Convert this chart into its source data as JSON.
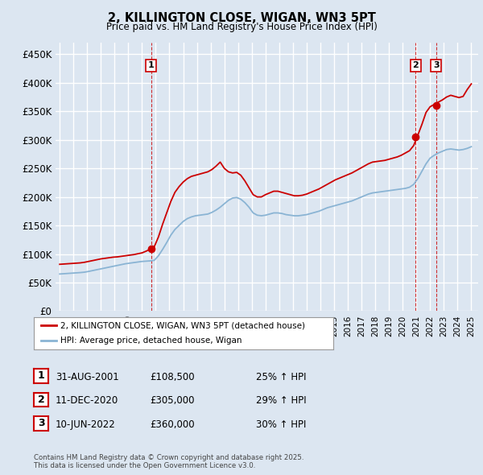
{
  "title": "2, KILLINGTON CLOSE, WIGAN, WN3 5PT",
  "subtitle": "Price paid vs. HM Land Registry's House Price Index (HPI)",
  "ylim": [
    0,
    470000
  ],
  "yticks": [
    0,
    50000,
    100000,
    150000,
    200000,
    250000,
    300000,
    350000,
    400000,
    450000
  ],
  "ytick_labels": [
    "£0",
    "£50K",
    "£100K",
    "£150K",
    "£200K",
    "£250K",
    "£300K",
    "£350K",
    "£400K",
    "£450K"
  ],
  "bg_color": "#dce6f1",
  "plot_bg_color": "#dce6f1",
  "grid_color": "#ffffff",
  "line_color_red": "#cc0000",
  "line_color_blue": "#8ab4d4",
  "dashed_line_color": "#cc0000",
  "transaction_points": [
    {
      "date_num": 2001.66,
      "price": 108500,
      "label": "1"
    },
    {
      "date_num": 2020.94,
      "price": 305000,
      "label": "2"
    },
    {
      "date_num": 2022.44,
      "price": 360000,
      "label": "3"
    }
  ],
  "legend_entry1": "2, KILLINGTON CLOSE, WIGAN, WN3 5PT (detached house)",
  "legend_entry2": "HPI: Average price, detached house, Wigan",
  "table_rows": [
    {
      "num": "1",
      "date": "31-AUG-2001",
      "price": "£108,500",
      "pct": "25% ↑ HPI"
    },
    {
      "num": "2",
      "date": "11-DEC-2020",
      "price": "£305,000",
      "pct": "29% ↑ HPI"
    },
    {
      "num": "3",
      "date": "10-JUN-2022",
      "price": "£360,000",
      "pct": "30% ↑ HPI"
    }
  ],
  "footer": "Contains HM Land Registry data © Crown copyright and database right 2025.\nThis data is licensed under the Open Government Licence v3.0.",
  "hpi_years": [
    1995.0,
    1995.3,
    1995.6,
    1995.9,
    1996.2,
    1996.5,
    1996.8,
    1997.1,
    1997.4,
    1997.7,
    1998.0,
    1998.3,
    1998.6,
    1998.9,
    1999.2,
    1999.5,
    1999.8,
    2000.1,
    2000.4,
    2000.7,
    2001.0,
    2001.3,
    2001.6,
    2001.9,
    2002.2,
    2002.5,
    2002.8,
    2003.1,
    2003.4,
    2003.7,
    2004.0,
    2004.3,
    2004.6,
    2004.9,
    2005.2,
    2005.5,
    2005.8,
    2006.1,
    2006.4,
    2006.7,
    2007.0,
    2007.3,
    2007.6,
    2007.9,
    2008.2,
    2008.5,
    2008.8,
    2009.1,
    2009.4,
    2009.7,
    2010.0,
    2010.3,
    2010.6,
    2010.9,
    2011.2,
    2011.5,
    2011.8,
    2012.1,
    2012.4,
    2012.7,
    2013.0,
    2013.3,
    2013.6,
    2013.9,
    2014.2,
    2014.5,
    2014.8,
    2015.1,
    2015.4,
    2015.7,
    2016.0,
    2016.3,
    2016.6,
    2016.9,
    2017.2,
    2017.5,
    2017.8,
    2018.1,
    2018.4,
    2018.7,
    2019.0,
    2019.3,
    2019.6,
    2019.9,
    2020.2,
    2020.5,
    2020.8,
    2021.1,
    2021.4,
    2021.7,
    2022.0,
    2022.3,
    2022.6,
    2022.9,
    2023.2,
    2023.5,
    2023.8,
    2024.1,
    2024.4,
    2024.7,
    2025.0
  ],
  "hpi_prices": [
    65000,
    65500,
    66000,
    66500,
    67000,
    67500,
    68200,
    69500,
    71000,
    72500,
    74000,
    75500,
    77000,
    78500,
    80000,
    81500,
    83000,
    84000,
    85000,
    86000,
    87000,
    87500,
    88000,
    89000,
    97000,
    108000,
    120000,
    133000,
    143000,
    150000,
    157000,
    162000,
    165000,
    167000,
    168000,
    169000,
    170000,
    173000,
    177000,
    182000,
    188000,
    194000,
    198000,
    199000,
    196000,
    190000,
    182000,
    172000,
    168000,
    167000,
    168000,
    170000,
    172000,
    172000,
    171000,
    169000,
    168000,
    167000,
    167000,
    168000,
    169000,
    171000,
    173000,
    175000,
    178000,
    181000,
    183000,
    185000,
    187000,
    189000,
    191000,
    193000,
    196000,
    199000,
    202000,
    205000,
    207000,
    208000,
    209000,
    210000,
    211000,
    212000,
    213000,
    214000,
    215000,
    217000,
    222000,
    232000,
    245000,
    258000,
    268000,
    273000,
    277000,
    280000,
    283000,
    284000,
    283000,
    282000,
    283000,
    285000,
    288000
  ],
  "red_years": [
    1995.0,
    1995.3,
    1995.6,
    1995.9,
    1996.2,
    1996.5,
    1996.8,
    1997.1,
    1997.4,
    1997.7,
    1998.0,
    1998.3,
    1998.6,
    1998.9,
    1999.2,
    1999.5,
    1999.8,
    2000.1,
    2000.4,
    2000.7,
    2001.0,
    2001.3,
    2001.6,
    2001.9,
    2002.2,
    2002.5,
    2002.8,
    2003.1,
    2003.4,
    2003.7,
    2004.0,
    2004.3,
    2004.6,
    2004.9,
    2005.2,
    2005.5,
    2005.8,
    2006.1,
    2006.4,
    2006.7,
    2007.0,
    2007.3,
    2007.6,
    2007.9,
    2008.2,
    2008.5,
    2008.8,
    2009.1,
    2009.4,
    2009.7,
    2010.0,
    2010.3,
    2010.6,
    2010.9,
    2011.2,
    2011.5,
    2011.8,
    2012.1,
    2012.4,
    2012.7,
    2013.0,
    2013.3,
    2013.6,
    2013.9,
    2014.2,
    2014.5,
    2014.8,
    2015.1,
    2015.4,
    2015.7,
    2016.0,
    2016.3,
    2016.6,
    2016.9,
    2017.2,
    2017.5,
    2017.8,
    2018.1,
    2018.4,
    2018.7,
    2019.0,
    2019.3,
    2019.6,
    2019.9,
    2020.2,
    2020.5,
    2020.8,
    2021.1,
    2021.4,
    2021.7,
    2022.0,
    2022.3,
    2022.6,
    2022.9,
    2023.2,
    2023.5,
    2023.8,
    2024.1,
    2024.4,
    2024.7,
    2025.0
  ],
  "red_prices": [
    82000,
    82500,
    83000,
    83500,
    84000,
    84500,
    85500,
    87000,
    88500,
    90000,
    91500,
    92500,
    93500,
    94500,
    95000,
    96000,
    97000,
    98000,
    99000,
    100500,
    102000,
    105000,
    108500,
    113000,
    130000,
    152000,
    172000,
    192000,
    208000,
    218000,
    226000,
    232000,
    236000,
    238000,
    240000,
    242000,
    244000,
    248000,
    254000,
    261000,
    250000,
    244000,
    242000,
    243000,
    238000,
    228000,
    216000,
    204000,
    200000,
    200000,
    204000,
    207000,
    210000,
    210000,
    208000,
    206000,
    204000,
    202000,
    202000,
    203000,
    205000,
    208000,
    211000,
    214000,
    218000,
    222000,
    226000,
    230000,
    233000,
    236000,
    239000,
    242000,
    246000,
    250000,
    254000,
    258000,
    261000,
    262000,
    263000,
    264000,
    266000,
    268000,
    270000,
    273000,
    277000,
    281000,
    290000,
    308000,
    327000,
    348000,
    358000,
    362000,
    366000,
    370000,
    375000,
    378000,
    376000,
    374000,
    376000,
    388000,
    398000
  ]
}
